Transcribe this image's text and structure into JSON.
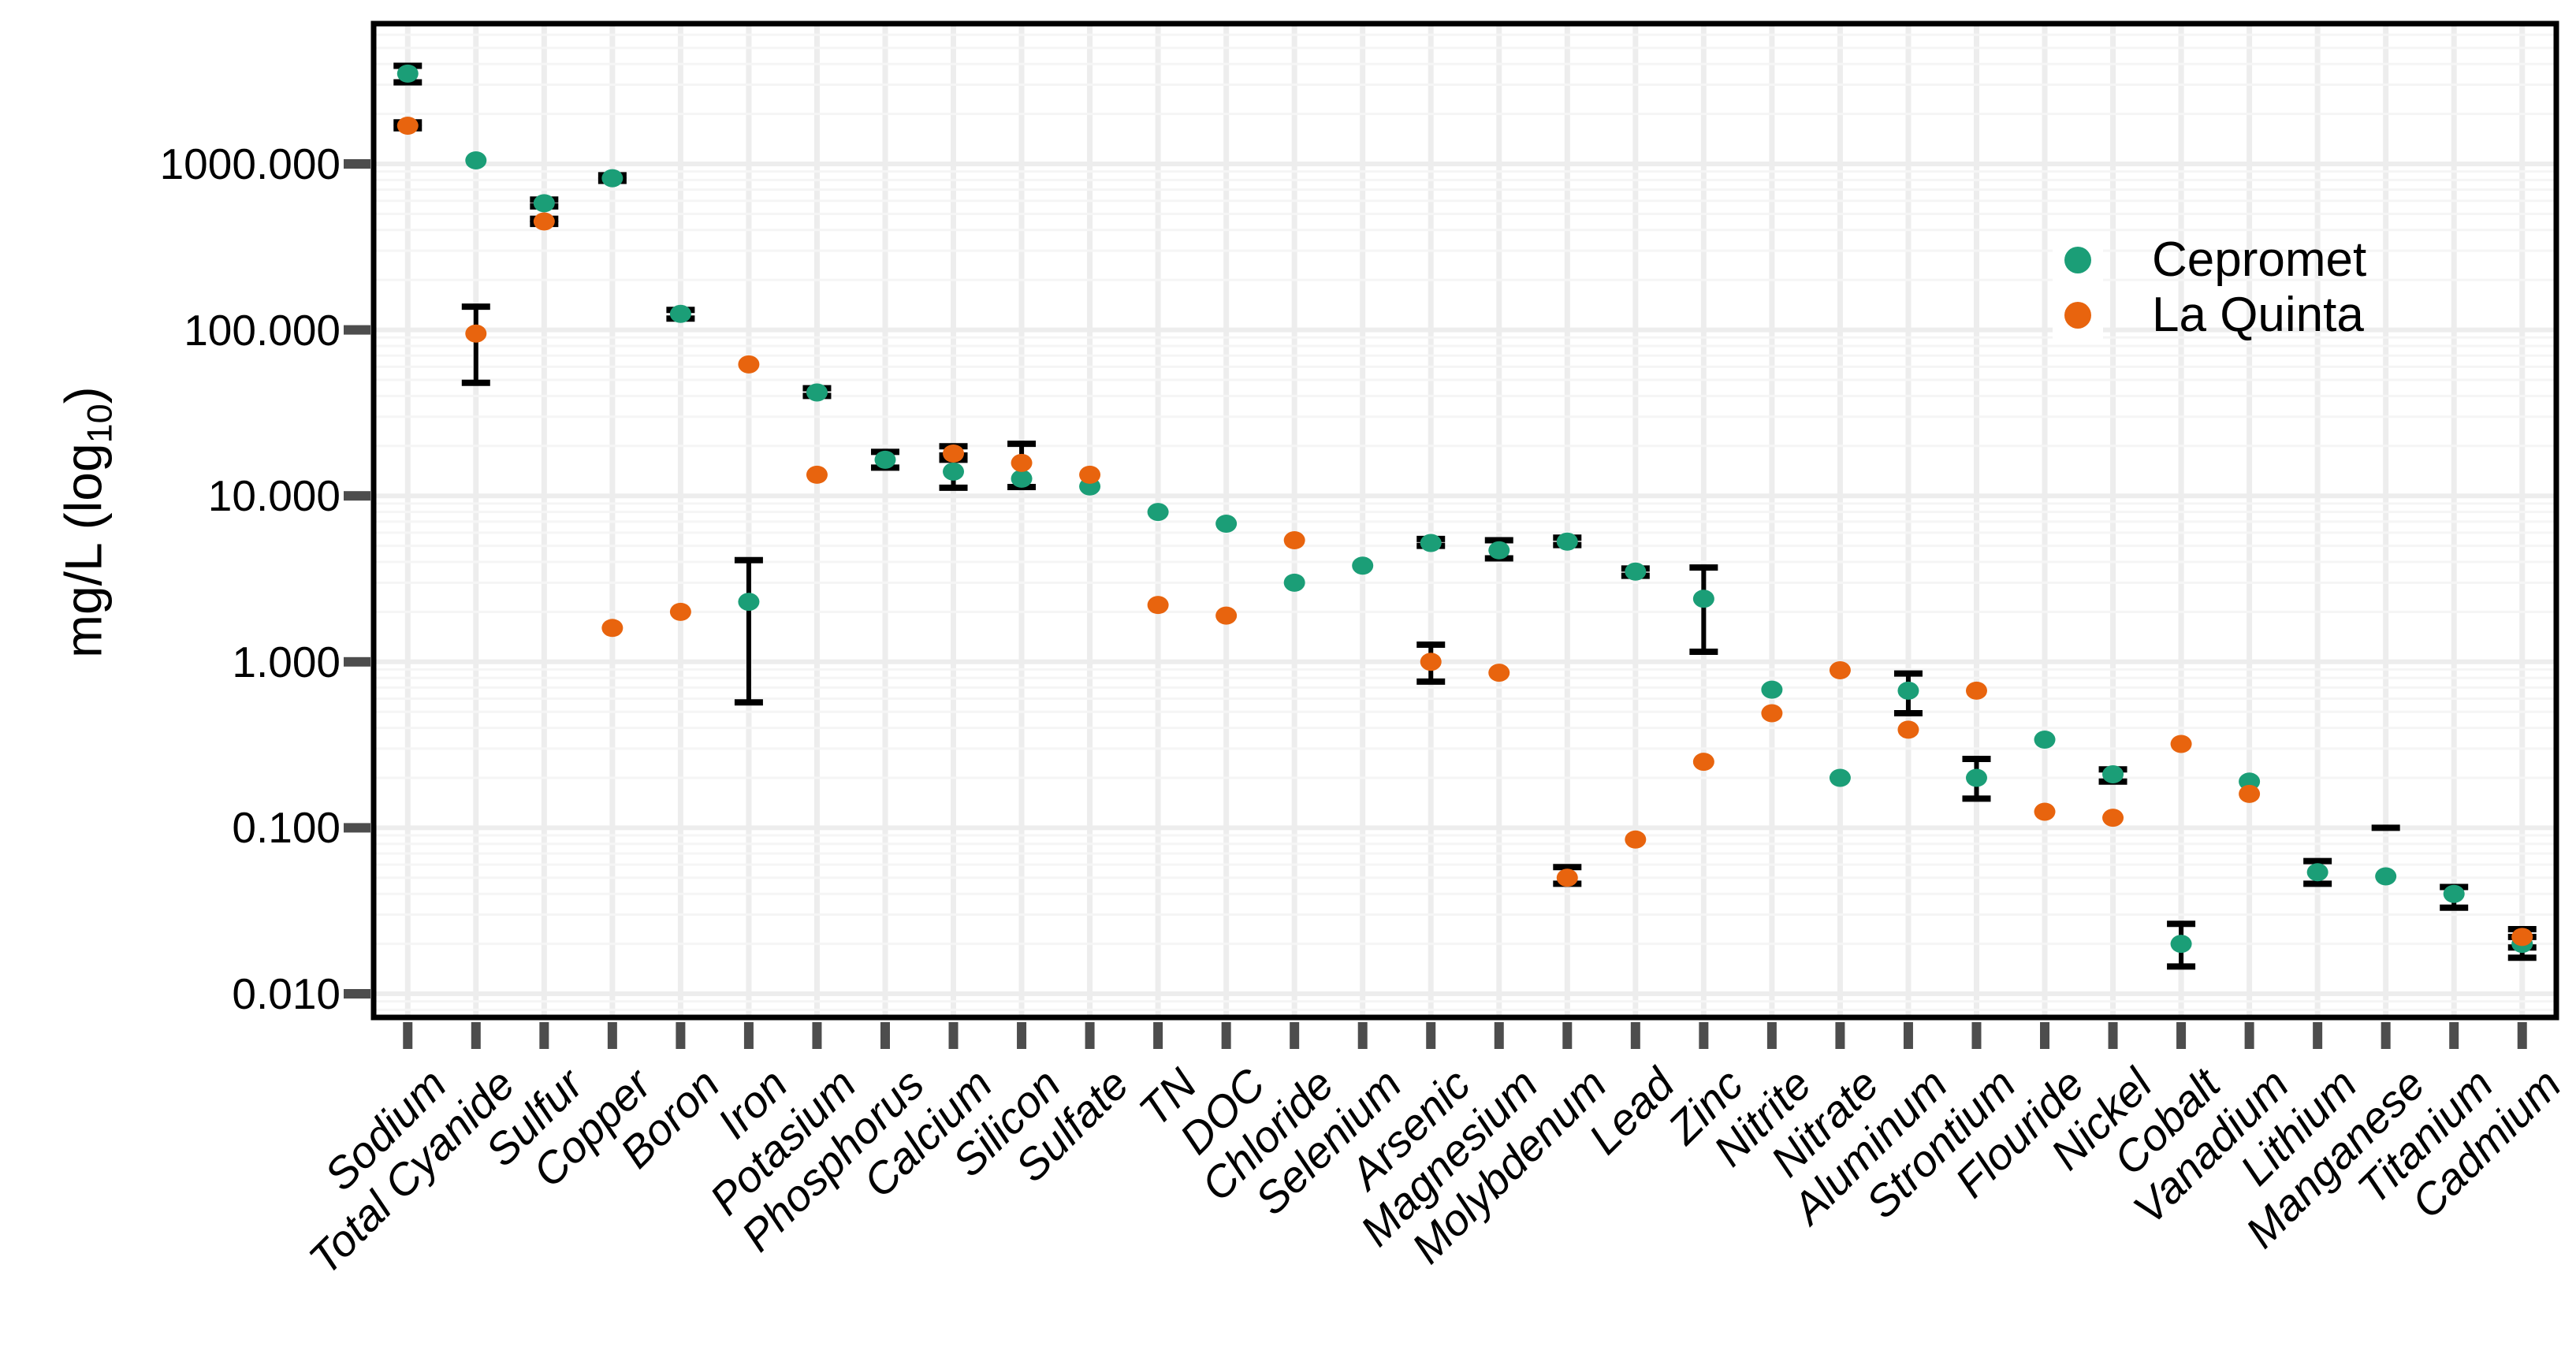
{
  "chart_data": {
    "type": "scatter",
    "title": "",
    "xlabel": "",
    "ylabel_parts": {
      "pre": "mg/L (log",
      "sub": "10",
      "post": ")"
    },
    "y_scale": "log10",
    "ylim": [
      0.007,
      7000
    ],
    "grid": "on",
    "legend_position": "inside-top-right",
    "ytick_values": [
      1000,
      100,
      10,
      1,
      0.1,
      0.01
    ],
    "ytick_labels": [
      "1000.000",
      "100.000",
      "10.000",
      "1.000",
      "0.100",
      "0.010"
    ],
    "categories": [
      "Sodium",
      "Total Cyanide",
      "Sulfur",
      "Copper",
      "Boron",
      "Iron",
      "Potasium",
      "Phosphorus",
      "Calcium",
      "Silicon",
      "Sulfate",
      "TN",
      "DOC",
      "Chloride",
      "Selenium",
      "Arsenic",
      "Magnesium",
      "Molybdenum",
      "Lead",
      "Zinc",
      "Nitrite",
      "Nitrate",
      "Aluminum",
      "Strontium",
      "Flouride",
      "Nickel",
      "Cobalt",
      "Vanadium",
      "Lithium",
      "Manganese",
      "Titanium",
      "Cadmium"
    ],
    "series": [
      {
        "name": "Cepromet",
        "color": "#1B9E77",
        "values": [
          3500,
          1050,
          580,
          820,
          125,
          2.3,
          42,
          16.5,
          14,
          12.7,
          11.4,
          8,
          6.8,
          3.0,
          3.8,
          5.2,
          4.7,
          5.3,
          3.5,
          2.4,
          0.68,
          0.2,
          0.67,
          0.2,
          0.34,
          0.21,
          0.02,
          0.19,
          0.054,
          0.051,
          0.04,
          0.02
        ],
        "err_low": [
          3100,
          null,
          555,
          790,
          117,
          0.57,
          40,
          14.8,
          11.2,
          11.3,
          null,
          null,
          null,
          null,
          null,
          5.0,
          4.2,
          5.05,
          3.3,
          1.15,
          null,
          null,
          0.49,
          0.15,
          null,
          0.19,
          0.0146,
          null,
          0.046,
          null,
          0.033,
          0.0165
        ],
        "err_high": [
          3900,
          null,
          610,
          855,
          132,
          4.1,
          44.5,
          18.4,
          17.5,
          20.6,
          null,
          null,
          null,
          null,
          null,
          5.5,
          5.4,
          5.6,
          3.65,
          3.7,
          null,
          null,
          0.85,
          0.26,
          null,
          0.225,
          0.0264,
          null,
          0.063,
          0.1,
          0.044,
          0.022
        ]
      },
      {
        "name": "La Quinta",
        "color": "#E8640E",
        "values": [
          1700,
          95,
          450,
          1.6,
          2.0,
          62,
          13.4,
          null,
          18,
          15.8,
          13.4,
          2.2,
          1.9,
          5.4,
          null,
          1.0,
          0.86,
          0.05,
          0.085,
          0.25,
          0.49,
          0.89,
          0.39,
          0.67,
          0.125,
          0.115,
          0.32,
          0.16,
          null,
          null,
          null,
          0.022
        ],
        "err_low": [
          1640,
          48,
          435,
          null,
          null,
          null,
          null,
          null,
          16.5,
          null,
          null,
          null,
          null,
          null,
          null,
          0.76,
          null,
          0.046,
          null,
          null,
          null,
          null,
          null,
          null,
          null,
          null,
          null,
          null,
          null,
          null,
          null,
          0.019
        ],
        "err_high": [
          1780,
          138,
          467,
          null,
          null,
          null,
          null,
          null,
          19.9,
          null,
          null,
          null,
          null,
          null,
          null,
          1.27,
          null,
          0.058,
          null,
          null,
          null,
          null,
          null,
          null,
          null,
          null,
          null,
          null,
          null,
          null,
          null,
          0.0245
        ]
      }
    ],
    "colors": {
      "cepromet": "#1B9E77",
      "la_quinta": "#E8640E",
      "panel_border": "#000000",
      "grid_major": "#EDEDED",
      "grid_minor": "#F5F5F5",
      "tick_mark": "#4D4D4D",
      "error_bar": "#000000"
    }
  }
}
